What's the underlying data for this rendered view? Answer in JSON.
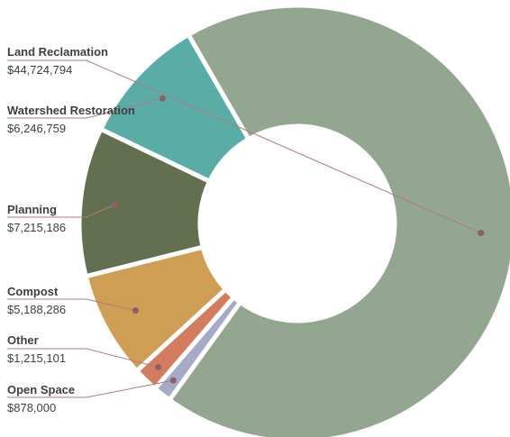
{
  "chart_data": {
    "type": "pie",
    "donut": true,
    "title": "",
    "slices": [
      {
        "name": "Land Reclamation",
        "label": "$44,724,794",
        "value": 44724794,
        "color": "#93a68f"
      },
      {
        "name": "Open Space",
        "label": "$878,000",
        "value": 878000,
        "color": "#a6aac7"
      },
      {
        "name": "Other",
        "label": "$1,215,101",
        "value": 1215101,
        "color": "#d37c5f"
      },
      {
        "name": "Compost",
        "label": "$5,188,286",
        "value": 5188286,
        "color": "#cf9e55"
      },
      {
        "name": "Planning",
        "label": "$7,215,186",
        "value": 7215186,
        "color": "#637050"
      },
      {
        "name": "Watershed Restoration",
        "label": "$6,246,759",
        "value": 6246759,
        "color": "#5aada7"
      }
    ],
    "legend": "none",
    "labels_position": "left with leader lines"
  }
}
